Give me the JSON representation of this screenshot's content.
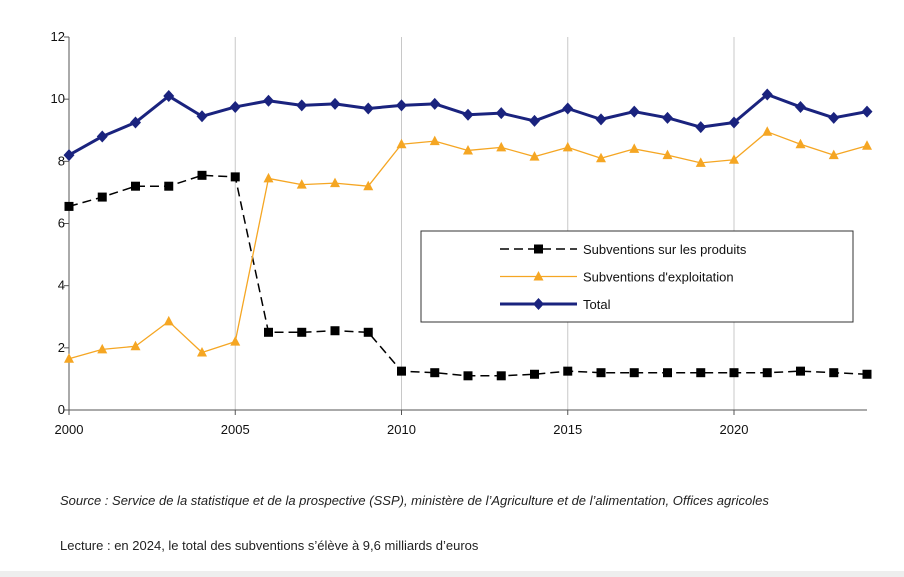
{
  "chart_data": {
    "type": "line",
    "title": "",
    "xlabel": "",
    "ylabel": "",
    "xlim": [
      2000,
      2024
    ],
    "ylim": [
      0,
      12
    ],
    "x_ticks": [
      "2000",
      "2005",
      "2010",
      "2015",
      "2020"
    ],
    "y_ticks": [
      "0",
      "2",
      "4",
      "6",
      "8",
      "10",
      "12"
    ],
    "grid": "vertical",
    "legend_position": "center-right",
    "x": [
      2000,
      2001,
      2002,
      2003,
      2004,
      2005,
      2006,
      2007,
      2008,
      2009,
      2010,
      2011,
      2012,
      2013,
      2014,
      2015,
      2016,
      2017,
      2018,
      2019,
      2020,
      2021,
      2022,
      2023,
      2024
    ],
    "series": [
      {
        "name": "Subventions sur les produits",
        "color": "#000000",
        "marker": "square",
        "dash": "dashed",
        "values": [
          6.55,
          6.85,
          7.2,
          7.2,
          7.55,
          7.5,
          2.5,
          2.5,
          2.55,
          2.5,
          1.25,
          1.2,
          1.1,
          1.1,
          1.15,
          1.25,
          1.2,
          1.2,
          1.2,
          1.2,
          1.2,
          1.2,
          1.25,
          1.2,
          1.15
        ]
      },
      {
        "name": "Subventions d'exploitation",
        "color": "#f5a623",
        "marker": "triangle",
        "dash": "solid",
        "values": [
          1.65,
          1.95,
          2.05,
          2.85,
          1.85,
          2.2,
          7.45,
          7.25,
          7.3,
          7.2,
          8.55,
          8.65,
          8.35,
          8.45,
          8.15,
          8.45,
          8.1,
          8.4,
          8.2,
          7.95,
          8.05,
          8.95,
          8.55,
          8.2,
          8.5
        ]
      },
      {
        "name": "Total",
        "color": "#1a237e",
        "marker": "diamond",
        "dash": "solid",
        "values": [
          8.2,
          8.8,
          9.25,
          10.1,
          9.45,
          9.75,
          9.95,
          9.8,
          9.85,
          9.7,
          9.8,
          9.85,
          9.5,
          9.55,
          9.3,
          9.7,
          9.35,
          9.6,
          9.4,
          9.1,
          9.25,
          10.15,
          9.75,
          9.4,
          9.6
        ]
      }
    ]
  },
  "footer": {
    "source": "Source : Service de la statistique et de la prospective (SSP), ministère de l’Agriculture et de l’alimentation, Offices agricoles",
    "reading": "Lecture : en 2024, le total des subventions s’élève à 9,6  milliards d’euros"
  }
}
